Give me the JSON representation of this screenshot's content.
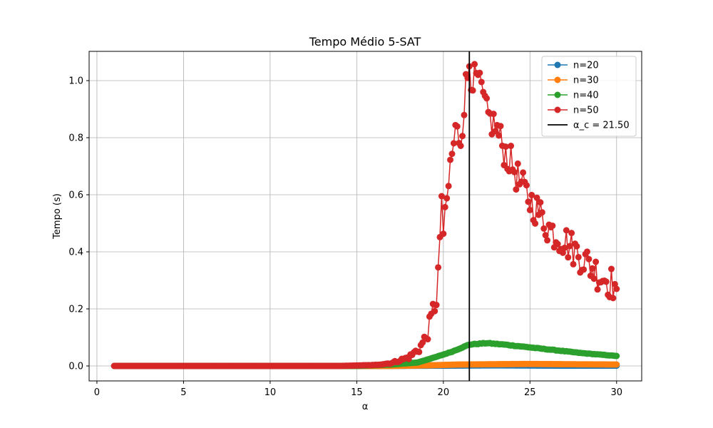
{
  "chart_data": {
    "type": "line",
    "title": "Tempo Médio 5-SAT",
    "xlabel": "α",
    "ylabel": "Tempo (s)",
    "xlim": [
      -0.45,
      31.45
    ],
    "ylim": [
      -0.0525,
      1.1025
    ],
    "x_ticks": [
      0,
      5,
      10,
      15,
      20,
      25,
      30
    ],
    "y_ticks": [
      0.0,
      0.2,
      0.4,
      0.6,
      0.8,
      1.0
    ],
    "x_tick_labels": [
      "0",
      "5",
      "10",
      "15",
      "20",
      "25",
      "30"
    ],
    "y_tick_labels": [
      "0.0",
      "0.2",
      "0.4",
      "0.6",
      "0.8",
      "1.0"
    ],
    "grid": true,
    "legend_position": "top-right",
    "x_start": 1.0,
    "x_end": 30.0,
    "x_step": 0.1,
    "series": [
      {
        "name": "n=20",
        "color": "#1f77b4",
        "anchors": [
          [
            1,
            0.0
          ],
          [
            16,
            0.0
          ],
          [
            20,
            0.001
          ],
          [
            23,
            0.002
          ],
          [
            27,
            0.001
          ],
          [
            30,
            0.001
          ]
        ],
        "markers": [
          {
            "x": 20.0,
            "y": 0.001
          }
        ]
      },
      {
        "name": "n=30",
        "color": "#ff7f0e",
        "anchors": [
          [
            1,
            0.0
          ],
          [
            17,
            0.0
          ],
          [
            19,
            0.002
          ],
          [
            21,
            0.005
          ],
          [
            23,
            0.006
          ],
          [
            25,
            0.007
          ],
          [
            27,
            0.006
          ],
          [
            30,
            0.005
          ]
        ],
        "markers": [
          {
            "x": 30.0,
            "y": 0.005
          }
        ]
      },
      {
        "name": "n=40",
        "color": "#2ca02c",
        "anchors": [
          [
            1,
            0.0
          ],
          [
            15,
            0.0
          ],
          [
            17,
            0.005
          ],
          [
            18.5,
            0.012
          ],
          [
            19.5,
            0.03
          ],
          [
            20.5,
            0.05
          ],
          [
            21.5,
            0.075
          ],
          [
            22.5,
            0.08
          ],
          [
            23.5,
            0.075
          ],
          [
            25,
            0.065
          ],
          [
            26.5,
            0.055
          ],
          [
            28,
            0.045
          ],
          [
            30,
            0.035
          ]
        ],
        "markers": [
          {
            "x": 30.0,
            "y": 0.035
          }
        ]
      },
      {
        "name": "n=50",
        "color": "#d62728",
        "anchors": [
          [
            1,
            0.0
          ],
          [
            14,
            0.0
          ],
          [
            16,
            0.003
          ],
          [
            17,
            0.01
          ],
          [
            18,
            0.03
          ],
          [
            18.6,
            0.06
          ],
          [
            19.0,
            0.1
          ],
          [
            19.3,
            0.16
          ],
          [
            19.6,
            0.25
          ],
          [
            19.8,
            0.4
          ],
          [
            20.1,
            0.5
          ],
          [
            20.4,
            0.7
          ],
          [
            20.7,
            0.82
          ],
          [
            21.0,
            0.8
          ],
          [
            21.3,
            0.98
          ],
          [
            21.5,
            1.04
          ],
          [
            21.8,
            1.0
          ],
          [
            22.2,
            0.96
          ],
          [
            22.5,
            0.88
          ],
          [
            23.0,
            0.84
          ],
          [
            23.5,
            0.76
          ],
          [
            24.0,
            0.7
          ],
          [
            24.5,
            0.63
          ],
          [
            25.0,
            0.58
          ],
          [
            25.5,
            0.54
          ],
          [
            26.0,
            0.49
          ],
          [
            26.5,
            0.46
          ],
          [
            27.0,
            0.44
          ],
          [
            27.5,
            0.41
          ],
          [
            28.0,
            0.38
          ],
          [
            28.5,
            0.35
          ],
          [
            29.0,
            0.32
          ],
          [
            29.5,
            0.3
          ],
          [
            30.0,
            0.28
          ]
        ],
        "markers": [
          {
            "x": 19.9,
            "y": 0.595
          },
          {
            "x": 21.5,
            "y": 1.05
          },
          {
            "x": 22.0,
            "y": 1.02
          },
          {
            "x": 30.0,
            "y": 0.27
          }
        ]
      }
    ],
    "vertical_line": {
      "x": 21.5,
      "label": "α_c = 21.50",
      "color": "#000000"
    }
  }
}
